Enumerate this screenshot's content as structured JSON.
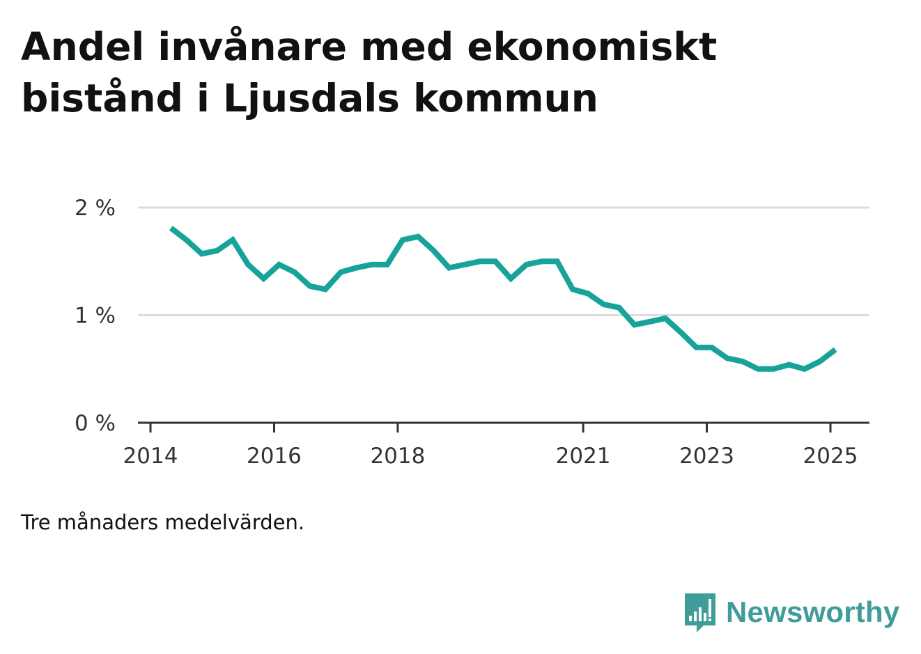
{
  "title": "Andel invånare med ekonomiskt bistånd i Ljusdals kommun",
  "caption": "Tre månaders medelvärden.",
  "brand": {
    "name": "Newsworthy",
    "icon": "bar-chart-speech-bubble-icon",
    "color": "#3f9c98"
  },
  "chart_data": {
    "type": "line",
    "title": "Andel invånare med ekonomiskt bistånd i Ljusdals kommun",
    "xlabel": "",
    "ylabel": "",
    "x_range": [
      2014,
      2025.33
    ],
    "ylim": [
      0,
      2
    ],
    "y_ticks": [
      0,
      1,
      2
    ],
    "y_tick_labels": [
      "0 %",
      "1 %",
      "2 %"
    ],
    "x_ticks": [
      2014,
      2016,
      2018,
      2021,
      2023,
      2025
    ],
    "x_tick_labels": [
      "2014",
      "2016",
      "2018",
      "2021",
      "2023",
      "2025"
    ],
    "grid": true,
    "line_color": "#17a39a",
    "series": [
      {
        "values": [
          [
            2014.33,
            1.81
          ],
          [
            2014.58,
            1.7
          ],
          [
            2014.83,
            1.57
          ],
          [
            2015.08,
            1.6
          ],
          [
            2015.33,
            1.7
          ],
          [
            2015.58,
            1.47
          ],
          [
            2015.83,
            1.34
          ],
          [
            2016.08,
            1.47
          ],
          [
            2016.33,
            1.4
          ],
          [
            2016.58,
            1.27
          ],
          [
            2016.83,
            1.24
          ],
          [
            2017.08,
            1.4
          ],
          [
            2017.33,
            1.44
          ],
          [
            2017.58,
            1.47
          ],
          [
            2017.83,
            1.47
          ],
          [
            2018.08,
            1.7
          ],
          [
            2018.33,
            1.73
          ],
          [
            2018.58,
            1.6
          ],
          [
            2018.83,
            1.44
          ],
          [
            2019.08,
            1.47
          ],
          [
            2019.33,
            1.5
          ],
          [
            2019.58,
            1.5
          ],
          [
            2019.83,
            1.34
          ],
          [
            2020.08,
            1.47
          ],
          [
            2020.33,
            1.5
          ],
          [
            2020.58,
            1.5
          ],
          [
            2020.83,
            1.24
          ],
          [
            2021.08,
            1.2
          ],
          [
            2021.33,
            1.1
          ],
          [
            2021.58,
            1.07
          ],
          [
            2021.83,
            0.91
          ],
          [
            2022.08,
            0.94
          ],
          [
            2022.33,
            0.97
          ],
          [
            2022.58,
            0.84
          ],
          [
            2022.83,
            0.7
          ],
          [
            2023.08,
            0.7
          ],
          [
            2023.33,
            0.6
          ],
          [
            2023.58,
            0.57
          ],
          [
            2023.83,
            0.5
          ],
          [
            2024.08,
            0.5
          ],
          [
            2024.33,
            0.54
          ],
          [
            2024.58,
            0.5
          ],
          [
            2024.83,
            0.57
          ],
          [
            2025.08,
            0.68
          ]
        ]
      }
    ]
  }
}
